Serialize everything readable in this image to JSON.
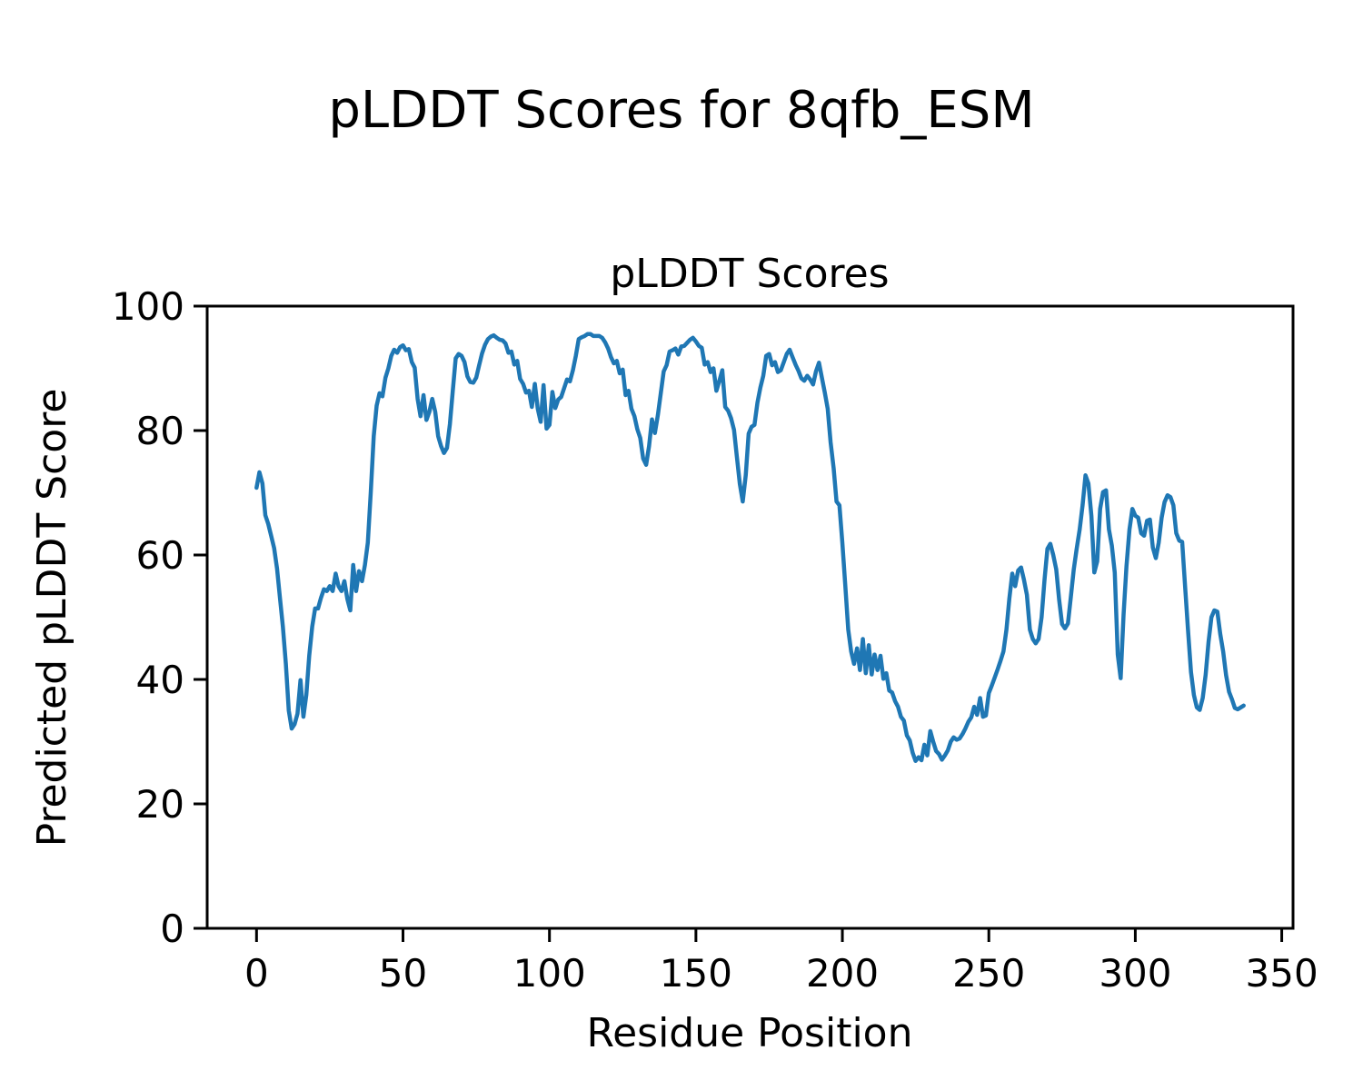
{
  "figure": {
    "suptitle": "pLDDT Scores for 8qfb_ESM"
  },
  "chart_data": {
    "type": "line",
    "title": "pLDDT Scores",
    "xlabel": "Residue Position",
    "ylabel": "Predicted pLDDT Score",
    "xlim": [
      -16.85,
      353.85
    ],
    "ylim": [
      0,
      100
    ],
    "xticks": [
      0,
      50,
      100,
      150,
      200,
      250,
      300,
      350
    ],
    "yticks": [
      0,
      20,
      40,
      60,
      80,
      100
    ],
    "grid": false,
    "legend": "none",
    "line_color": "#1f77b4",
    "background_color": "#ffffff",
    "series": [
      {
        "name": "pLDDT",
        "x_start": 0,
        "x_step": 1,
        "values": [
          70.8,
          73.3,
          71.5,
          66.4,
          65,
          63.1,
          61.1,
          57.8,
          53.1,
          48.5,
          42.5,
          35,
          32.1,
          32.8,
          34.5,
          39.9,
          34,
          37.5,
          43.8,
          48.5,
          51.4,
          51.4,
          53.1,
          54.5,
          54.2,
          55,
          54.2,
          57,
          55,
          54.2,
          55.8,
          52.9,
          51.1,
          58.4,
          54.2,
          57.4,
          55.8,
          58.4,
          62,
          70,
          79.1,
          84,
          86,
          85.5,
          88.5,
          90,
          92,
          93,
          92.5,
          93.4,
          93.7,
          92.9,
          93.1,
          91,
          90.1,
          85.1,
          82.3,
          85.7,
          81.7,
          83,
          85.1,
          83,
          79.1,
          77.5,
          76.4,
          77.2,
          81,
          86.4,
          91.6,
          92.3,
          92,
          91,
          88.7,
          87.8,
          87.7,
          88.5,
          90.5,
          92.4,
          93.8,
          94.7,
          95.1,
          95.3,
          94.9,
          94.6,
          94.5,
          94,
          92.5,
          92.7,
          90.6,
          91.2,
          88.3,
          87.5,
          86.1,
          86.4,
          83.8,
          87.5,
          83.5,
          81.4,
          87.3,
          80.3,
          80.9,
          86.2,
          83.6,
          85,
          85.4,
          86.8,
          88.2,
          87.9,
          89.7,
          92,
          94.7,
          95,
          95.2,
          95.5,
          95.5,
          95.2,
          95.2,
          95.2,
          94.9,
          94.2,
          93.2,
          91.8,
          90.8,
          91.2,
          89.2,
          89.8,
          85.7,
          86.4,
          83.5,
          82.3,
          80.2,
          78.8,
          75.5,
          74.5,
          77.5,
          81.8,
          79.6,
          82.5,
          86,
          89.5,
          90.5,
          92.7,
          92.9,
          93.2,
          92.2,
          93.5,
          93.6,
          94.1,
          94.6,
          94.9,
          94.3,
          93.6,
          93.3,
          90.6,
          91,
          89.4,
          90,
          86.4,
          88,
          89.7,
          83.8,
          83.2,
          82,
          80.1,
          75.7,
          71.4,
          68.6,
          72.8,
          79.5,
          80.6,
          80.9,
          84.5,
          86.9,
          88.8,
          92,
          92.3,
          90.5,
          91,
          89.4,
          89.7,
          91,
          92.3,
          93,
          91.8,
          90.6,
          89.6,
          88.4,
          88,
          88.8,
          88.2,
          87.4,
          89.5,
          90.9,
          88.5,
          86.1,
          83.5,
          78.1,
          74,
          68.6,
          68,
          62,
          55,
          48,
          44.5,
          42.5,
          45,
          41.5,
          46.5,
          41,
          45.5,
          40.8,
          44,
          41.5,
          43.8,
          40.1,
          41,
          38.2,
          37.9,
          36.5,
          35.6,
          34,
          33.4,
          31,
          30.2,
          28.2,
          26.9,
          27.5,
          27,
          29.5,
          27.8,
          31.7,
          30,
          28.5,
          28,
          27.1,
          27.8,
          28.6,
          30,
          30.7,
          30.3,
          30.5,
          31.2,
          32.1,
          33.2,
          33.9,
          35.6,
          34.3,
          37,
          34,
          34.2,
          37.8,
          39,
          40.3,
          41.6,
          43,
          44.5,
          48,
          53,
          57,
          55,
          57.5,
          58,
          56,
          53.6,
          48,
          46.5,
          45.8,
          46.5,
          50,
          56,
          61,
          61.8,
          60,
          57.7,
          52.8,
          48.9,
          48.2,
          49,
          53.3,
          57.7,
          61,
          64.1,
          68,
          72.8,
          71.5,
          66.3,
          57.2,
          59,
          67.4,
          70.1,
          70.4,
          64.1,
          61.5,
          57.2,
          44,
          40.2,
          50.4,
          58.2,
          64.1,
          67.4,
          66.3,
          66,
          63.5,
          63.1,
          65.5,
          65.7,
          61.2,
          59.5,
          62,
          66,
          68.5,
          69.6,
          69.3,
          68,
          63.5,
          62.3,
          62.1,
          55,
          48,
          41.2,
          37.5,
          35.5,
          35.1,
          37,
          40.7,
          46,
          50,
          51.1,
          50.9,
          47.3,
          44.5,
          40.7,
          38,
          36.8,
          35.4,
          35.2,
          35.5,
          35.8
        ]
      }
    ]
  }
}
